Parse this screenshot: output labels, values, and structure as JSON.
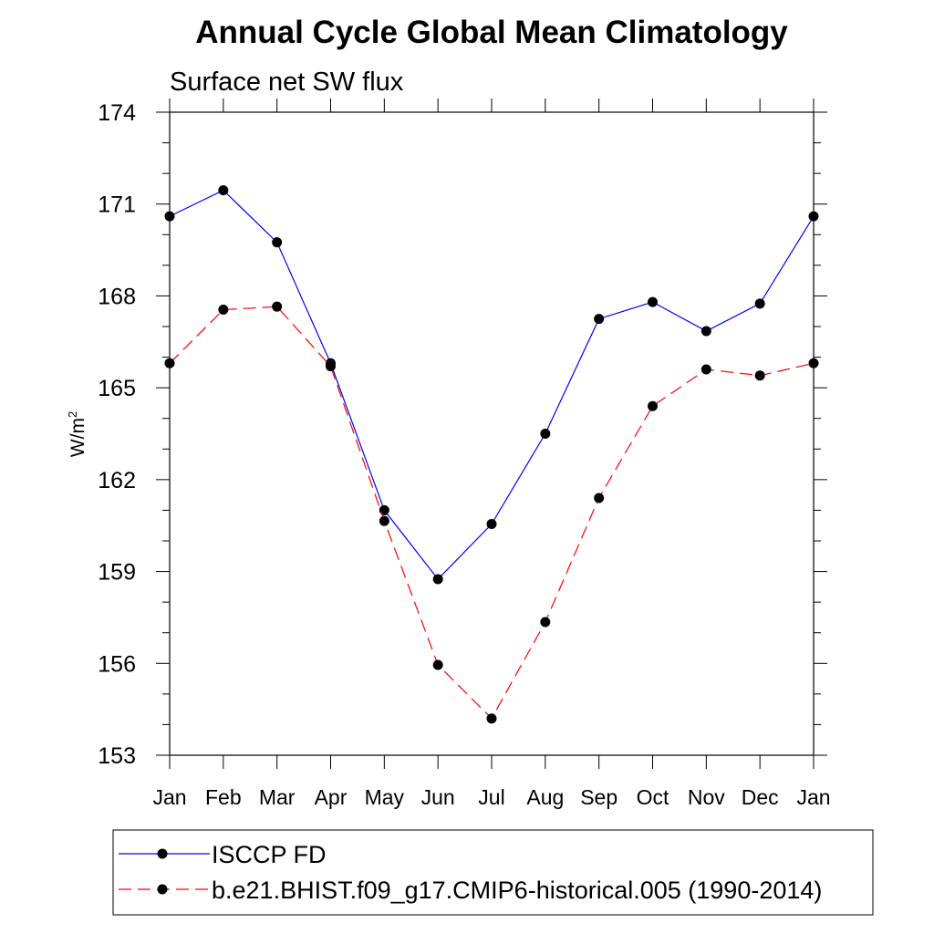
{
  "chart_data": {
    "type": "line",
    "title": "Annual Cycle Global Mean Climatology",
    "subtitle": "Surface net SW flux",
    "ylabel": "W/m",
    "ylabel_sup": "2",
    "xlabel": "",
    "categories": [
      "Jan",
      "Feb",
      "Mar",
      "Apr",
      "May",
      "Jun",
      "Jul",
      "Aug",
      "Sep",
      "Oct",
      "Nov",
      "Dec",
      "Jan"
    ],
    "ylim": [
      153,
      174
    ],
    "yticks": [
      153,
      156,
      159,
      162,
      165,
      168,
      171,
      174
    ],
    "series": [
      {
        "name": "ISCCP FD",
        "color": "#0000ff",
        "dash": "solid",
        "values": [
          170.6,
          171.45,
          169.75,
          165.8,
          161.0,
          158.75,
          160.55,
          163.5,
          167.25,
          167.8,
          166.85,
          167.75,
          170.6
        ]
      },
      {
        "name": "b.e21.BHIST.f09_g17.CMIP6-historical.005 (1990-2014)",
        "color": "#ff0000",
        "dash": "dashed",
        "values": [
          165.8,
          167.55,
          167.65,
          165.7,
          160.65,
          155.95,
          154.2,
          157.35,
          161.4,
          164.4,
          165.6,
          165.4,
          165.8
        ]
      }
    ],
    "legend_position": "bottom"
  }
}
